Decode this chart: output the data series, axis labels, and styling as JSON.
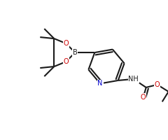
{
  "bg_color": "#ffffff",
  "bond_color": "#1a1a1a",
  "bond_width": 1.5,
  "atom_colors": {
    "B": "#1a1a1a",
    "O": "#cc0000",
    "N_pyridine": "#0000cc",
    "N_amine": "#1a1a1a"
  },
  "font_size_atom": 7.0
}
